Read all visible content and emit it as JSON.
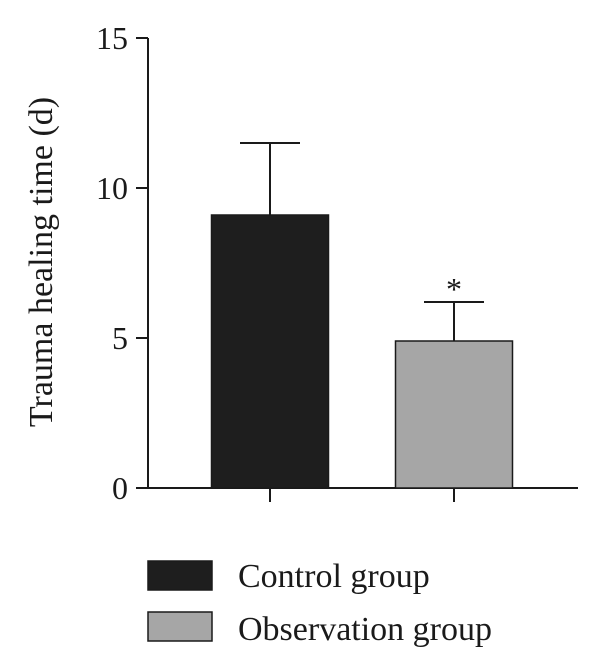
{
  "chart_data": {
    "type": "bar",
    "title": "",
    "xlabel": "",
    "ylabel": "Trauma healing time (d)",
    "ylim": [
      0,
      15
    ],
    "yticks": [
      0,
      5,
      10,
      15
    ],
    "grid": false,
    "legend_position": "bottom",
    "categories": [
      "Control group",
      "Observation group"
    ],
    "values": [
      9.1,
      4.9
    ],
    "errors": [
      2.4,
      1.3
    ],
    "colors": [
      "#1e1e1e",
      "#a6a6a6"
    ],
    "annotations": [
      "",
      "*"
    ],
    "legend": [
      {
        "label": "Control group",
        "color": "#1e1e1e"
      },
      {
        "label": "Observation group",
        "color": "#a6a6a6"
      }
    ]
  }
}
